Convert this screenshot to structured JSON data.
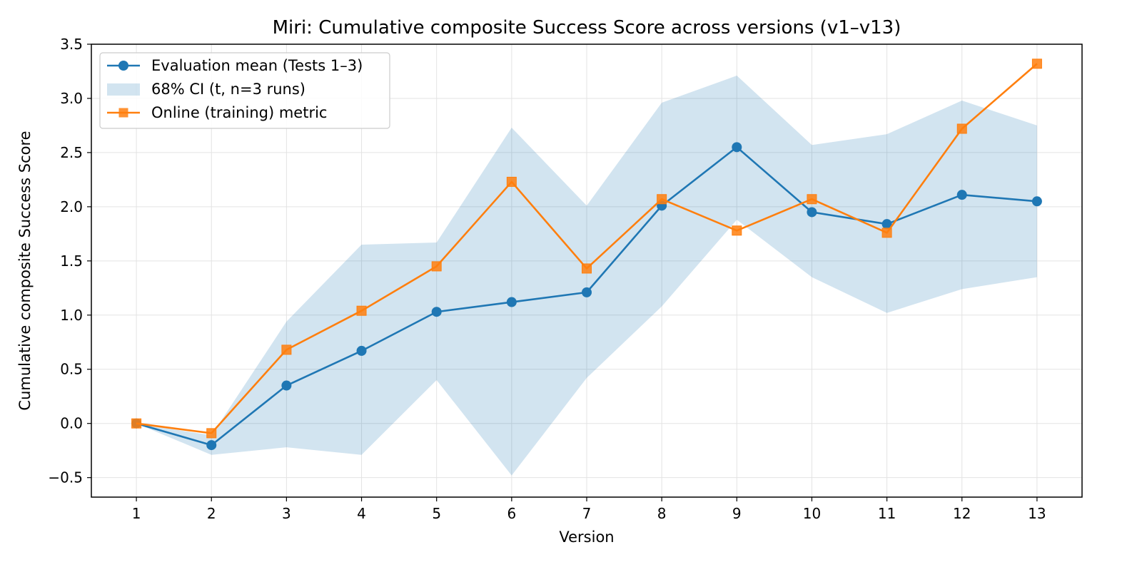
{
  "chart_data": {
    "type": "line",
    "title": "Miri: Cumulative composite Success Score across versions (v1–v13)",
    "xlabel": "Version",
    "ylabel": "Cumulative composite Success Score",
    "x": [
      1,
      2,
      3,
      4,
      5,
      6,
      7,
      8,
      9,
      10,
      11,
      12,
      13
    ],
    "x_tick_labels": [
      "1",
      "2",
      "3",
      "4",
      "5",
      "6",
      "7",
      "8",
      "9",
      "10",
      "11",
      "12",
      "13"
    ],
    "xlim": [
      0.4,
      13.6
    ],
    "ylim": [
      -0.68,
      3.5
    ],
    "y_ticks": [
      -0.5,
      0.0,
      0.5,
      1.0,
      1.5,
      2.0,
      2.5,
      3.0,
      3.5
    ],
    "y_tick_labels": [
      "−0.5",
      "0.0",
      "0.5",
      "1.0",
      "1.5",
      "2.0",
      "2.5",
      "3.0",
      "3.5"
    ],
    "grid": true,
    "legend_position": "top-left",
    "series": [
      {
        "name": "Evaluation mean (Tests 1–3)",
        "kind": "line-marker-circle",
        "color": "#1f77b4",
        "values": [
          0.0,
          -0.2,
          0.35,
          0.67,
          1.03,
          1.12,
          1.21,
          2.01,
          2.55,
          1.95,
          1.84,
          2.11,
          2.05
        ]
      },
      {
        "name": "68% CI (t, n=3 runs)",
        "kind": "band",
        "color": "#1f77b4",
        "lower": [
          0.0,
          -0.29,
          -0.22,
          -0.29,
          0.4,
          -0.48,
          0.42,
          1.08,
          1.88,
          1.35,
          1.02,
          1.24,
          1.35
        ],
        "upper": [
          0.0,
          -0.11,
          0.94,
          1.65,
          1.67,
          2.73,
          2.01,
          2.96,
          3.21,
          2.57,
          2.67,
          2.98,
          2.75
        ]
      },
      {
        "name": "Online (training) metric",
        "kind": "line-marker-square",
        "color": "#ff7f0e",
        "values": [
          0.0,
          -0.09,
          0.68,
          1.04,
          1.45,
          2.23,
          1.43,
          2.07,
          1.78,
          2.07,
          1.76,
          2.72,
          3.32
        ]
      }
    ]
  }
}
